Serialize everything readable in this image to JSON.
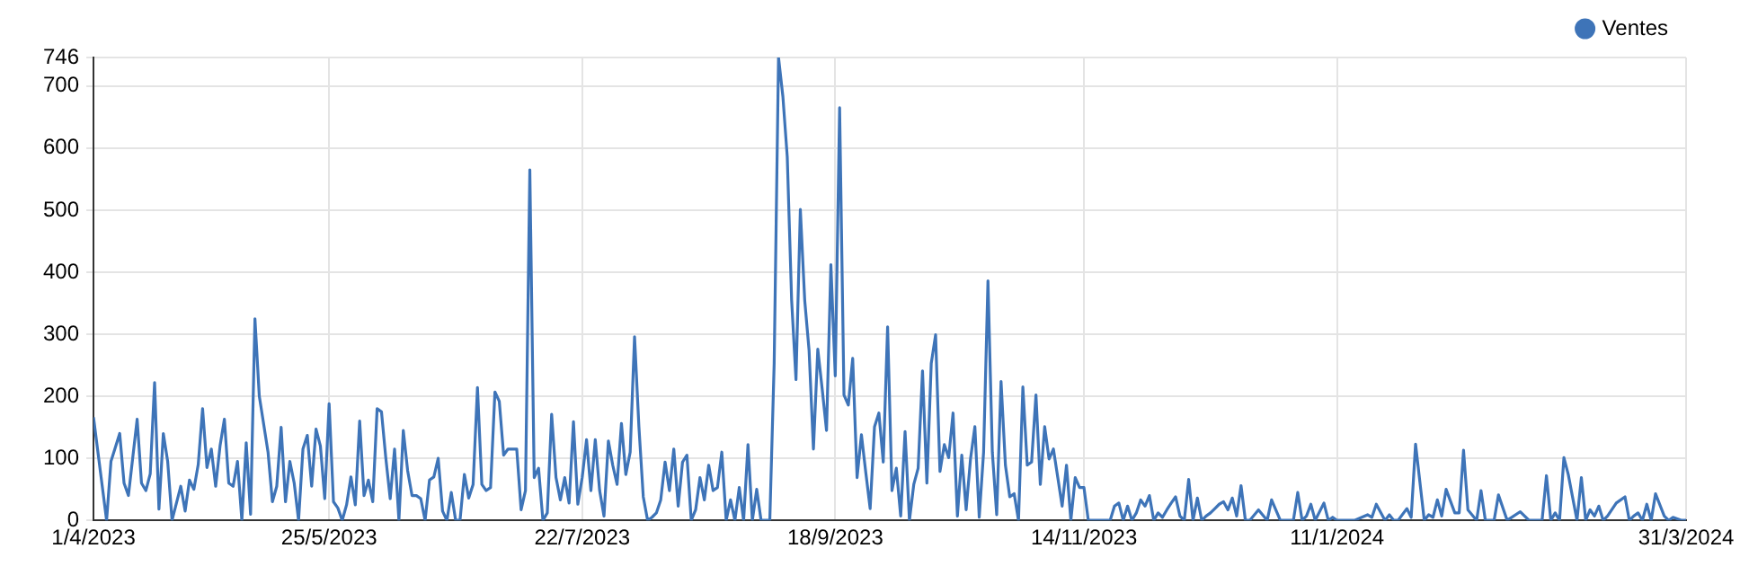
{
  "chart_data": {
    "type": "line",
    "legend": "top right",
    "grid": true,
    "marker": "none",
    "line_style": "solid",
    "xlim": [
      "2023-04-01",
      "2024-03-31"
    ],
    "xticks": [
      {
        "value": "2023-04-01",
        "label": "1/4/2023"
      },
      {
        "value": "2023-05-25",
        "label": "25/5/2023"
      },
      {
        "value": "2023-07-22",
        "label": "22/7/2023"
      },
      {
        "value": "2023-09-18",
        "label": "18/9/2023"
      },
      {
        "value": "2023-11-14",
        "label": "14/11/2023"
      },
      {
        "value": "2024-01-11",
        "label": "11/1/2024"
      },
      {
        "value": "2024-03-31",
        "label": "31/3/2024"
      }
    ],
    "ylim": [
      0,
      746
    ],
    "yticks": [
      0,
      100,
      200,
      300,
      400,
      500,
      600,
      700,
      746
    ],
    "x": [
      "2023-04-01",
      "2023-04-04",
      "2023-04-05",
      "2023-04-07",
      "2023-04-08",
      "2023-04-09",
      "2023-04-11",
      "2023-04-12",
      "2023-04-13",
      "2023-04-14",
      "2023-04-15",
      "2023-04-16",
      "2023-04-17",
      "2023-04-18",
      "2023-04-19",
      "2023-04-21",
      "2023-04-22",
      "2023-04-23",
      "2023-04-24",
      "2023-04-25",
      "2023-04-26",
      "2023-04-27",
      "2023-04-28",
      "2023-04-29",
      "2023-04-30",
      "2023-05-01",
      "2023-05-02",
      "2023-05-03",
      "2023-05-04",
      "2023-05-05",
      "2023-05-06",
      "2023-05-07",
      "2023-05-08",
      "2023-05-09",
      "2023-05-11",
      "2023-05-12",
      "2023-05-13",
      "2023-05-14",
      "2023-05-15",
      "2023-05-16",
      "2023-05-17",
      "2023-05-18",
      "2023-05-19",
      "2023-05-20",
      "2023-05-21",
      "2023-05-22",
      "2023-05-23",
      "2023-05-24",
      "2023-05-25",
      "2023-05-26",
      "2023-05-27",
      "2023-05-28",
      "2023-05-29",
      "2023-05-30",
      "2023-05-31",
      "2023-06-01",
      "2023-06-02",
      "2023-06-03",
      "2023-06-04",
      "2023-06-05",
      "2023-06-06",
      "2023-06-07",
      "2023-06-08",
      "2023-06-09",
      "2023-06-10",
      "2023-06-11",
      "2023-06-12",
      "2023-06-13",
      "2023-06-14",
      "2023-06-15",
      "2023-06-16",
      "2023-06-17",
      "2023-06-18",
      "2023-06-19",
      "2023-06-20",
      "2023-06-21",
      "2023-06-22",
      "2023-06-23",
      "2023-06-24",
      "2023-06-25",
      "2023-06-26",
      "2023-06-27",
      "2023-06-28",
      "2023-06-29",
      "2023-06-30",
      "2023-07-01",
      "2023-07-02",
      "2023-07-03",
      "2023-07-04",
      "2023-07-05",
      "2023-07-07",
      "2023-07-08",
      "2023-07-09",
      "2023-07-10",
      "2023-07-11",
      "2023-07-12",
      "2023-07-13",
      "2023-07-14",
      "2023-07-15",
      "2023-07-16",
      "2023-07-17",
      "2023-07-18",
      "2023-07-19",
      "2023-07-20",
      "2023-07-21",
      "2023-07-22",
      "2023-07-23",
      "2023-07-24",
      "2023-07-25",
      "2023-07-26",
      "2023-07-27",
      "2023-07-28",
      "2023-07-29",
      "2023-07-30",
      "2023-07-31",
      "2023-08-01",
      "2023-08-02",
      "2023-08-03",
      "2023-08-04",
      "2023-08-05",
      "2023-08-06",
      "2023-08-07",
      "2023-08-08",
      "2023-08-09",
      "2023-08-10",
      "2023-08-11",
      "2023-08-12",
      "2023-08-13",
      "2023-08-14",
      "2023-08-15",
      "2023-08-16",
      "2023-08-17",
      "2023-08-18",
      "2023-08-19",
      "2023-08-20",
      "2023-08-21",
      "2023-08-22",
      "2023-08-23",
      "2023-08-24",
      "2023-08-25",
      "2023-08-26",
      "2023-08-27",
      "2023-08-28",
      "2023-08-29",
      "2023-08-30",
      "2023-08-31",
      "2023-09-01",
      "2023-09-03",
      "2023-09-04",
      "2023-09-05",
      "2023-09-06",
      "2023-09-07",
      "2023-09-08",
      "2023-09-09",
      "2023-09-10",
      "2023-09-11",
      "2023-09-12",
      "2023-09-13",
      "2023-09-14",
      "2023-09-15",
      "2023-09-16",
      "2023-09-17",
      "2023-09-18",
      "2023-09-19",
      "2023-09-20",
      "2023-09-21",
      "2023-09-22",
      "2023-09-23",
      "2023-09-24",
      "2023-09-25",
      "2023-09-26",
      "2023-09-27",
      "2023-09-28",
      "2023-09-29",
      "2023-09-30",
      "2023-10-01",
      "2023-10-02",
      "2023-10-03",
      "2023-10-04",
      "2023-10-05",
      "2023-10-06",
      "2023-10-07",
      "2023-10-08",
      "2023-10-09",
      "2023-10-10",
      "2023-10-11",
      "2023-10-12",
      "2023-10-13",
      "2023-10-14",
      "2023-10-15",
      "2023-10-16",
      "2023-10-17",
      "2023-10-18",
      "2023-10-19",
      "2023-10-20",
      "2023-10-21",
      "2023-10-22",
      "2023-10-23",
      "2023-10-24",
      "2023-10-25",
      "2023-10-26",
      "2023-10-27",
      "2023-10-28",
      "2023-10-29",
      "2023-10-30",
      "2023-10-31",
      "2023-11-01",
      "2023-11-02",
      "2023-11-03",
      "2023-11-04",
      "2023-11-05",
      "2023-11-06",
      "2023-11-07",
      "2023-11-08",
      "2023-11-09",
      "2023-11-10",
      "2023-11-11",
      "2023-11-12",
      "2023-11-13",
      "2023-11-14",
      "2023-11-15",
      "2023-11-20",
      "2023-11-21",
      "2023-11-22",
      "2023-11-23",
      "2023-11-24",
      "2023-11-25",
      "2023-11-26",
      "2023-11-27",
      "2023-11-28",
      "2023-11-29",
      "2023-11-30",
      "2023-12-01",
      "2023-12-02",
      "2023-12-03",
      "2023-12-04",
      "2023-12-05",
      "2023-12-06",
      "2023-12-07",
      "2023-12-08",
      "2023-12-09",
      "2023-12-10",
      "2023-12-11",
      "2023-12-12",
      "2023-12-13",
      "2023-12-14",
      "2023-12-15",
      "2023-12-16",
      "2023-12-17",
      "2023-12-18",
      "2023-12-19",
      "2023-12-20",
      "2023-12-21",
      "2023-12-22",
      "2023-12-24",
      "2023-12-26",
      "2023-12-27",
      "2023-12-29",
      "2024-01-01",
      "2024-01-02",
      "2024-01-03",
      "2024-01-04",
      "2024-01-05",
      "2024-01-06",
      "2024-01-08",
      "2024-01-09",
      "2024-01-10",
      "2024-01-11",
      "2024-01-15",
      "2024-01-18",
      "2024-01-19",
      "2024-01-20",
      "2024-01-22",
      "2024-01-23",
      "2024-01-24",
      "2024-01-25",
      "2024-01-27",
      "2024-01-28",
      "2024-01-29",
      "2024-01-31",
      "2024-02-01",
      "2024-02-02",
      "2024-02-03",
      "2024-02-04",
      "2024-02-05",
      "2024-02-07",
      "2024-02-08",
      "2024-02-09",
      "2024-02-10",
      "2024-02-12",
      "2024-02-13",
      "2024-02-14",
      "2024-02-16",
      "2024-02-17",
      "2024-02-19",
      "2024-02-22",
      "2024-02-24",
      "2024-02-27",
      "2024-02-28",
      "2024-02-29",
      "2024-03-01",
      "2024-03-02",
      "2024-03-03",
      "2024-03-04",
      "2024-03-06",
      "2024-03-07",
      "2024-03-08",
      "2024-03-09",
      "2024-03-10",
      "2024-03-11",
      "2024-03-12",
      "2024-03-13",
      "2024-03-15",
      "2024-03-17",
      "2024-03-18",
      "2024-03-19",
      "2024-03-20",
      "2024-03-21",
      "2024-03-22",
      "2024-03-23",
      "2024-03-24",
      "2024-03-26",
      "2024-03-27",
      "2024-03-28",
      "2024-03-30",
      "2024-03-31"
    ],
    "series": [
      {
        "name": "Ventes",
        "color": "#3e74b8",
        "values": [
          166,
          0,
          95,
          140,
          60,
          40,
          163,
          60,
          48,
          75,
          222,
          18,
          140,
          95,
          0,
          55,
          15,
          65,
          50,
          90,
          180,
          85,
          115,
          55,
          120,
          163,
          60,
          55,
          95,
          0,
          125,
          10,
          325,
          200,
          110,
          30,
          55,
          150,
          30,
          95,
          60,
          0,
          115,
          137,
          55,
          147,
          120,
          35,
          188,
          30,
          20,
          0,
          25,
          70,
          25,
          160,
          40,
          65,
          30,
          180,
          175,
          100,
          35,
          115,
          0,
          145,
          80,
          40,
          40,
          35,
          0,
          65,
          70,
          100,
          15,
          0,
          45,
          0,
          0,
          74,
          36,
          58,
          214,
          58,
          48,
          53,
          207,
          192,
          105,
          115,
          115,
          17,
          48,
          565,
          69,
          84,
          0,
          12,
          171,
          69,
          33,
          69,
          28,
          159,
          26,
          69,
          130,
          48,
          130,
          48,
          7,
          128,
          89,
          58,
          156,
          74,
          110,
          296,
          151,
          38,
          0,
          5,
          12,
          33,
          94,
          48,
          115,
          23,
          94,
          105,
          0,
          17,
          69,
          33,
          89,
          48,
          53,
          110,
          0,
          33,
          0,
          53,
          0,
          122,
          0,
          50,
          0,
          0,
          253,
          746,
          683,
          586,
          355,
          227,
          501,
          355,
          274,
          115,
          276,
          212,
          145,
          412,
          233,
          665,
          202,
          186,
          261,
          69,
          138,
          77,
          19,
          151,
          173,
          94,
          312,
          48,
          84,
          7,
          143,
          0,
          58,
          84,
          241,
          60,
          253,
          299,
          79,
          122,
          101,
          173,
          7,
          105,
          17,
          99,
          151,
          5,
          110,
          386,
          110,
          9,
          224,
          89,
          38,
          43,
          0,
          215,
          89,
          94,
          202,
          58,
          151,
          99,
          115,
          69,
          23,
          89,
          0,
          69,
          53,
          53,
          0,
          0,
          23,
          28,
          0,
          23,
          0,
          12,
          33,
          23,
          40,
          0,
          12,
          5,
          17,
          28,
          38,
          7,
          0,
          66,
          0,
          36,
          0,
          7,
          12,
          19,
          26,
          30,
          17,
          36,
          7,
          56,
          0,
          0,
          17,
          0,
          33,
          0,
          0,
          45,
          0,
          7,
          26,
          0,
          28,
          0,
          5,
          0,
          0,
          9,
          5,
          26,
          0,
          9,
          0,
          0,
          19,
          5,
          123,
          0,
          9,
          5,
          33,
          7,
          50,
          12,
          12,
          113,
          17,
          0,
          48,
          0,
          0,
          41,
          0,
          14,
          0,
          0,
          72,
          0,
          12,
          0,
          101,
          74,
          0,
          69,
          0,
          17,
          7,
          23,
          0,
          7,
          28,
          38,
          0,
          7,
          12,
          0,
          26,
          0,
          43,
          7,
          0,
          5,
          0,
          0
        ]
      }
    ]
  }
}
